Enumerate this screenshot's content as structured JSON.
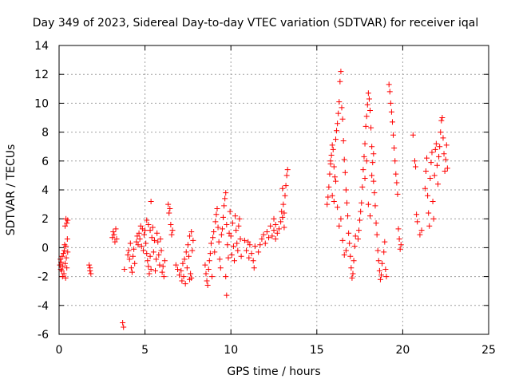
{
  "chart_data": {
    "type": "scatter",
    "title": "Day 349 of 2023, Sidereal Day-to-day VTEC variation (SDTVAR) for receiver iqal",
    "xlabel": "GPS time / hours",
    "ylabel": "SDTVAR / TECUs",
    "xlim": [
      0,
      25
    ],
    "ylim": [
      -6,
      14
    ],
    "x_ticks": [
      0,
      5,
      10,
      15,
      20,
      25
    ],
    "x_tick_labels": [
      "0",
      "5",
      "10",
      "15",
      "20",
      "25"
    ],
    "y_ticks": [
      -6,
      -4,
      -2,
      0,
      2,
      4,
      6,
      8,
      10,
      12,
      14
    ],
    "y_tick_labels": [
      "-6",
      "-4",
      "-2",
      "0",
      "2",
      "4",
      "6",
      "8",
      "10",
      "12",
      "14"
    ],
    "grid": true,
    "marker": "+",
    "color": "#ff0000",
    "series": [
      {
        "name": "SDTVAR",
        "points": [
          [
            0.05,
            -1.2
          ],
          [
            0.08,
            -0.8
          ],
          [
            0.1,
            -1.5
          ],
          [
            0.12,
            -1.0
          ],
          [
            0.15,
            -1.6
          ],
          [
            0.18,
            -0.6
          ],
          [
            0.2,
            -2.0
          ],
          [
            0.22,
            -1.3
          ],
          [
            0.25,
            -0.4
          ],
          [
            0.28,
            -1.8
          ],
          [
            0.3,
            -0.2
          ],
          [
            0.32,
            0.2
          ],
          [
            0.35,
            -1.1
          ],
          [
            0.38,
            -2.1
          ],
          [
            0.4,
            0.1
          ],
          [
            0.42,
            -0.7
          ],
          [
            0.45,
            -1.4
          ],
          [
            0.48,
            0.6
          ],
          [
            0.5,
            -0.3
          ],
          [
            0.35,
            1.5
          ],
          [
            0.4,
            2.0
          ],
          [
            0.45,
            1.7
          ],
          [
            0.5,
            1.9
          ],
          [
            1.75,
            -1.2
          ],
          [
            1.8,
            -1.6
          ],
          [
            1.85,
            -1.8
          ],
          [
            1.8,
            -1.4
          ],
          [
            3.1,
            0.7
          ],
          [
            3.15,
            1.1
          ],
          [
            3.2,
            0.9
          ],
          [
            3.25,
            0.4
          ],
          [
            3.3,
            1.3
          ],
          [
            3.35,
            0.6
          ],
          [
            3.7,
            -5.2
          ],
          [
            3.75,
            -5.5
          ],
          [
            3.8,
            -1.5
          ],
          [
            4.0,
            -0.5
          ],
          [
            4.05,
            -0.2
          ],
          [
            4.1,
            -0.8
          ],
          [
            4.15,
            0.3
          ],
          [
            4.2,
            -1.4
          ],
          [
            4.25,
            -1.7
          ],
          [
            4.3,
            -0.6
          ],
          [
            4.35,
            -0.1
          ],
          [
            4.4,
            -1.1
          ],
          [
            4.5,
            0.4
          ],
          [
            4.55,
            0.8
          ],
          [
            4.6,
            0.2
          ],
          [
            4.65,
            1.0
          ],
          [
            4.7,
            0.6
          ],
          [
            4.75,
            1.5
          ],
          [
            4.8,
            0.1
          ],
          [
            4.85,
            1.3
          ],
          [
            4.9,
            -0.2
          ],
          [
            4.95,
            0.9
          ],
          [
            5.0,
            1.2
          ],
          [
            5.05,
            0.3
          ],
          [
            5.1,
            -0.4
          ],
          [
            5.15,
            -0.9
          ],
          [
            5.2,
            -1.3
          ],
          [
            5.25,
            -1.8
          ],
          [
            5.3,
            -0.6
          ],
          [
            5.35,
            -1.5
          ],
          [
            5.1,
            1.9
          ],
          [
            5.2,
            1.6
          ],
          [
            5.3,
            1.2
          ],
          [
            5.35,
            3.2
          ],
          [
            5.4,
            0.7
          ],
          [
            5.45,
            1.4
          ],
          [
            5.5,
            -0.3
          ],
          [
            5.55,
            0.5
          ],
          [
            5.6,
            -1.6
          ],
          [
            5.65,
            -0.8
          ],
          [
            5.7,
            1.0
          ],
          [
            5.75,
            0.4
          ],
          [
            5.8,
            -0.5
          ],
          [
            5.85,
            -1.2
          ],
          [
            5.9,
            0.6
          ],
          [
            5.95,
            -0.2
          ],
          [
            6.0,
            -1.7
          ],
          [
            6.05,
            -1.3
          ],
          [
            6.1,
            -2.0
          ],
          [
            6.15,
            -0.9
          ],
          [
            6.35,
            3.0
          ],
          [
            6.4,
            2.4
          ],
          [
            6.45,
            2.7
          ],
          [
            6.5,
            1.6
          ],
          [
            6.55,
            0.9
          ],
          [
            6.6,
            1.2
          ],
          [
            6.8,
            -1.2
          ],
          [
            6.9,
            -1.5
          ],
          [
            7.0,
            -1.9
          ],
          [
            7.1,
            -1.6
          ],
          [
            7.15,
            -2.3
          ],
          [
            7.2,
            -1.1
          ],
          [
            7.25,
            -2.0
          ],
          [
            7.3,
            -0.8
          ],
          [
            7.35,
            -2.5
          ],
          [
            7.4,
            -0.3
          ],
          [
            7.45,
            -1.4
          ],
          [
            7.5,
            0.2
          ],
          [
            7.55,
            -0.6
          ],
          [
            7.6,
            0.8
          ],
          [
            7.65,
            -1.8
          ],
          [
            7.7,
            1.1
          ],
          [
            7.75,
            -0.2
          ],
          [
            7.8,
            0.5
          ],
          [
            7.6,
            -2.2
          ],
          [
            7.7,
            -2.1
          ],
          [
            8.5,
            -1.2
          ],
          [
            8.55,
            -1.8
          ],
          [
            8.6,
            -2.3
          ],
          [
            8.65,
            -2.6
          ],
          [
            8.7,
            -1.5
          ],
          [
            8.75,
            -0.9
          ],
          [
            8.8,
            -0.4
          ],
          [
            8.85,
            0.3
          ],
          [
            8.9,
            -2.0
          ],
          [
            8.95,
            0.7
          ],
          [
            9.0,
            1.1
          ],
          [
            9.05,
            -0.3
          ],
          [
            9.1,
            1.8
          ],
          [
            9.15,
            2.3
          ],
          [
            9.2,
            2.7
          ],
          [
            9.25,
            1.4
          ],
          [
            9.3,
            0.4
          ],
          [
            9.35,
            -0.8
          ],
          [
            9.4,
            -1.4
          ],
          [
            9.45,
            0.9
          ],
          [
            9.5,
            1.3
          ],
          [
            9.55,
            2.1
          ],
          [
            9.6,
            2.9
          ],
          [
            9.65,
            3.4
          ],
          [
            9.7,
            3.8
          ],
          [
            9.75,
            1.6
          ],
          [
            9.8,
            0.2
          ],
          [
            9.85,
            -0.7
          ],
          [
            9.9,
            1.0
          ],
          [
            9.95,
            2.5
          ],
          [
            10.0,
            0.8
          ],
          [
            10.05,
            -0.5
          ],
          [
            10.1,
            1.7
          ],
          [
            10.15,
            0.1
          ],
          [
            10.2,
            -0.9
          ],
          [
            10.25,
            2.2
          ],
          [
            10.3,
            1.2
          ],
          [
            10.35,
            0.3
          ],
          [
            10.4,
            -0.2
          ],
          [
            10.45,
            1.5
          ],
          [
            10.5,
            2.0
          ],
          [
            10.55,
            0.6
          ],
          [
            10.6,
            -0.6
          ],
          [
            9.7,
            -2.0
          ],
          [
            9.75,
            -3.3
          ],
          [
            10.8,
            0.5
          ],
          [
            10.9,
            -0.2
          ],
          [
            11.0,
            0.4
          ],
          [
            11.05,
            -0.7
          ],
          [
            11.1,
            0.2
          ],
          [
            11.2,
            -0.4
          ],
          [
            11.3,
            -0.9
          ],
          [
            11.35,
            -1.4
          ],
          [
            11.4,
            0.1
          ],
          [
            11.6,
            -0.3
          ],
          [
            11.7,
            0.2
          ],
          [
            11.8,
            0.6
          ],
          [
            11.9,
            0.9
          ],
          [
            12.0,
            0.3
          ],
          [
            12.1,
            1.1
          ],
          [
            12.2,
            0.7
          ],
          [
            12.3,
            1.5
          ],
          [
            12.4,
            0.8
          ],
          [
            12.5,
            1.2
          ],
          [
            12.6,
            1.6
          ],
          [
            12.7,
            1.0
          ],
          [
            12.8,
            1.3
          ],
          [
            12.9,
            1.8
          ],
          [
            12.95,
            2.5
          ],
          [
            13.0,
            2.1
          ],
          [
            13.05,
            3.0
          ],
          [
            13.1,
            2.4
          ],
          [
            13.15,
            3.6
          ],
          [
            13.2,
            4.3
          ],
          [
            13.25,
            5.0
          ],
          [
            13.3,
            5.4
          ],
          [
            12.5,
            2.0
          ],
          [
            12.6,
            0.6
          ],
          [
            13.0,
            4.1
          ],
          [
            13.1,
            1.4
          ],
          [
            15.6,
            3.0
          ],
          [
            15.65,
            3.5
          ],
          [
            15.7,
            4.2
          ],
          [
            15.75,
            5.1
          ],
          [
            15.8,
            5.8
          ],
          [
            15.85,
            6.4
          ],
          [
            15.9,
            7.1
          ],
          [
            15.95,
            6.8
          ],
          [
            16.0,
            5.6
          ],
          [
            16.05,
            4.9
          ],
          [
            16.1,
            7.5
          ],
          [
            16.15,
            8.1
          ],
          [
            16.2,
            8.6
          ],
          [
            16.25,
            9.3
          ],
          [
            16.3,
            10.1
          ],
          [
            16.35,
            11.5
          ],
          [
            16.4,
            12.2
          ],
          [
            16.45,
            9.7
          ],
          [
            16.5,
            8.9
          ],
          [
            16.55,
            7.4
          ],
          [
            16.6,
            6.1
          ],
          [
            16.65,
            5.2
          ],
          [
            16.7,
            4.0
          ],
          [
            16.75,
            3.1
          ],
          [
            16.8,
            2.2
          ],
          [
            16.85,
            1.0
          ],
          [
            16.9,
            0.3
          ],
          [
            16.95,
            -0.6
          ],
          [
            17.0,
            -1.4
          ],
          [
            17.05,
            -2.1
          ],
          [
            17.1,
            -1.8
          ],
          [
            17.15,
            -0.9
          ],
          [
            17.2,
            0.1
          ],
          [
            17.25,
            0.8
          ],
          [
            16.7,
            -0.2
          ],
          [
            16.6,
            -0.5
          ],
          [
            16.5,
            0.5
          ],
          [
            16.4,
            2.0
          ],
          [
            16.3,
            1.5
          ],
          [
            16.2,
            2.8
          ],
          [
            16.1,
            4.6
          ],
          [
            16.0,
            3.2
          ],
          [
            15.9,
            3.6
          ],
          [
            15.8,
            6.0
          ],
          [
            17.4,
            0.6
          ],
          [
            17.45,
            1.2
          ],
          [
            17.5,
            1.9
          ],
          [
            17.55,
            2.5
          ],
          [
            17.6,
            3.1
          ],
          [
            17.65,
            4.2
          ],
          [
            17.7,
            5.4
          ],
          [
            17.75,
            6.3
          ],
          [
            17.8,
            7.2
          ],
          [
            17.85,
            8.4
          ],
          [
            17.9,
            9.1
          ],
          [
            17.95,
            9.9
          ],
          [
            18.0,
            10.7
          ],
          [
            18.05,
            10.3
          ],
          [
            18.1,
            9.5
          ],
          [
            18.15,
            8.3
          ],
          [
            18.2,
            7.0
          ],
          [
            18.25,
            5.9
          ],
          [
            18.3,
            4.6
          ],
          [
            18.35,
            3.8
          ],
          [
            18.4,
            2.9
          ],
          [
            18.45,
            1.7
          ],
          [
            18.5,
            0.9
          ],
          [
            18.55,
            -0.2
          ],
          [
            18.6,
            -0.9
          ],
          [
            18.65,
            -1.6
          ],
          [
            18.7,
            -2.2
          ],
          [
            18.75,
            -1.9
          ],
          [
            18.8,
            -1.1
          ],
          [
            18.9,
            -0.3
          ],
          [
            18.95,
            0.4
          ],
          [
            19.0,
            -1.5
          ],
          [
            19.05,
            -2.0
          ],
          [
            18.0,
            3.0
          ],
          [
            18.1,
            2.2
          ],
          [
            18.2,
            5.0
          ],
          [
            18.3,
            6.5
          ],
          [
            17.9,
            6.0
          ],
          [
            17.8,
            4.8
          ],
          [
            19.2,
            11.3
          ],
          [
            19.25,
            10.8
          ],
          [
            19.3,
            10.0
          ],
          [
            19.35,
            9.4
          ],
          [
            19.4,
            8.7
          ],
          [
            19.45,
            7.8
          ],
          [
            19.5,
            6.9
          ],
          [
            19.55,
            6.0
          ],
          [
            19.6,
            5.1
          ],
          [
            19.65,
            4.5
          ],
          [
            19.7,
            3.7
          ],
          [
            19.75,
            1.3
          ],
          [
            19.8,
            0.6
          ],
          [
            19.85,
            -0.1
          ],
          [
            19.9,
            0.2
          ],
          [
            20.6,
            7.8
          ],
          [
            20.7,
            6.0
          ],
          [
            20.75,
            5.6
          ],
          [
            20.8,
            2.3
          ],
          [
            20.85,
            1.8
          ],
          [
            21.0,
            0.9
          ],
          [
            21.1,
            1.2
          ],
          [
            21.3,
            4.1
          ],
          [
            21.35,
            5.3
          ],
          [
            21.4,
            6.2
          ],
          [
            21.45,
            3.6
          ],
          [
            21.5,
            2.4
          ],
          [
            21.55,
            1.5
          ],
          [
            21.6,
            4.8
          ],
          [
            21.65,
            5.9
          ],
          [
            21.7,
            6.6
          ],
          [
            21.75,
            3.2
          ],
          [
            21.8,
            2.0
          ],
          [
            21.85,
            5.0
          ],
          [
            21.9,
            6.8
          ],
          [
            21.95,
            7.2
          ],
          [
            22.0,
            5.7
          ],
          [
            22.05,
            4.4
          ],
          [
            22.1,
            6.3
          ],
          [
            22.15,
            7.0
          ],
          [
            22.2,
            8.0
          ],
          [
            22.25,
            8.8
          ],
          [
            22.3,
            9.0
          ],
          [
            22.35,
            7.6
          ],
          [
            22.4,
            6.5
          ],
          [
            22.45,
            5.3
          ],
          [
            22.5,
            6.1
          ],
          [
            22.55,
            7.1
          ],
          [
            22.6,
            5.5
          ]
        ]
      }
    ]
  }
}
